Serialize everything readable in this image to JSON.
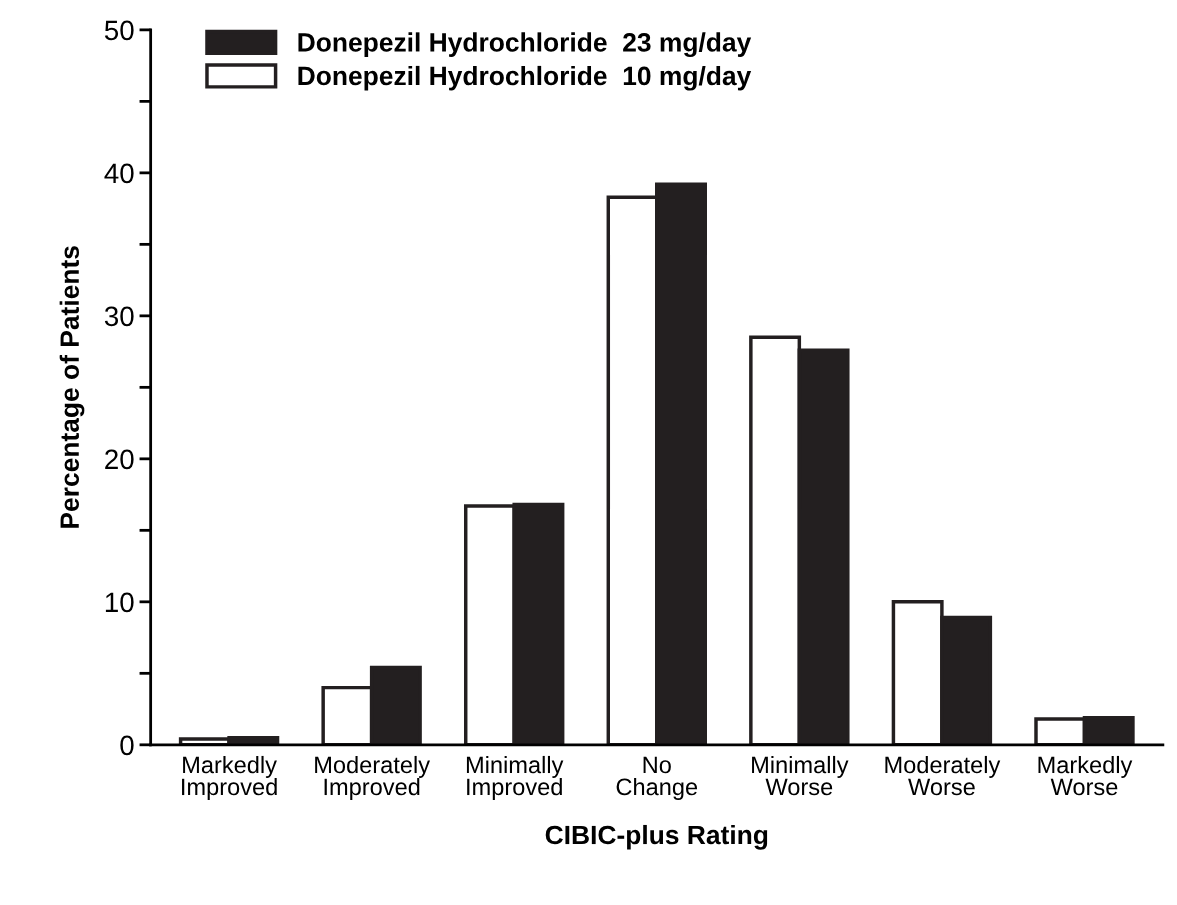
{
  "chart_data": {
    "type": "bar",
    "xlabel": "CIBIC-plus Rating",
    "ylabel": "Percentage of Patients",
    "categories": [
      "Markedly\nImproved",
      "Moderately\nImproved",
      "Minimally\nImproved",
      "No\nChange",
      "Minimally\nWorse",
      "Moderately\nWorse",
      "Markedly\nWorse"
    ],
    "series": [
      {
        "name": "Donepezil Hydrochloride  10 mg/day",
        "color": "#ffffff",
        "values": [
          0.4,
          4.0,
          16.7,
          38.3,
          28.5,
          10.0,
          1.8
        ]
      },
      {
        "name": "Donepezil Hydrochloride  23 mg/day",
        "color": "#231f20",
        "values": [
          0.5,
          5.4,
          16.8,
          39.2,
          27.6,
          8.9,
          1.9
        ]
      }
    ],
    "ylim": [
      0,
      50
    ],
    "yticks": [
      0,
      {
        "value": 5,
        "label": null
      },
      10,
      {
        "value": 15,
        "label": null
      },
      20,
      {
        "value": 25,
        "label": null
      },
      30,
      {
        "value": 35,
        "label": null
      },
      40,
      {
        "value": 45,
        "label": null
      },
      50
    ],
    "grid": false,
    "legend": "top left"
  }
}
